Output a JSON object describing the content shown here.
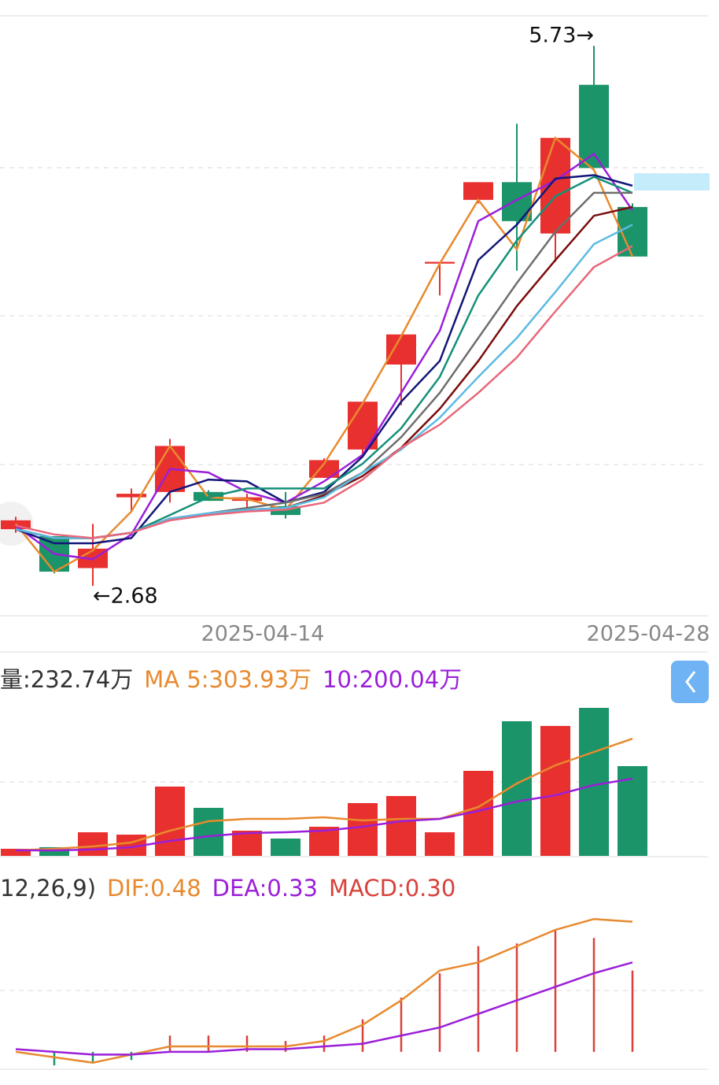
{
  "chart_data": [
    {
      "type": "candlestick",
      "categories": [
        null,
        null,
        null,
        null,
        null,
        null,
        "2025-04-14",
        null,
        null,
        null,
        null,
        null,
        null,
        null,
        null,
        null,
        "2025-04-28"
      ],
      "open": [
        3.0,
        2.96,
        2.78,
        3.18,
        3.21,
        3.21,
        3.16,
        3.13,
        3.29,
        3.45,
        3.93,
        4.5,
        4.86,
        4.96,
        4.67,
        5.51,
        4.82
      ],
      "high": [
        3.07,
        2.96,
        3.03,
        3.23,
        3.51,
        3.22,
        3.2,
        3.21,
        3.4,
        3.72,
        4.1,
        4.51,
        4.96,
        5.29,
        5.21,
        5.73,
        4.84
      ],
      "low": [
        2.98,
        2.75,
        2.68,
        3.1,
        3.15,
        3.16,
        3.12,
        3.06,
        3.29,
        3.42,
        3.7,
        4.32,
        4.84,
        4.46,
        4.51,
        5.04,
        4.54
      ],
      "close": [
        3.05,
        2.76,
        2.89,
        3.2,
        3.47,
        3.16,
        3.18,
        3.08,
        3.39,
        3.72,
        4.1,
        4.51,
        4.96,
        4.74,
        5.21,
        5.04,
        4.54
      ],
      "up_color": "#e8312f",
      "down_color": "#1a9468",
      "lines": [
        {
          "color": "#e88a2e",
          "values": [
            3.03,
            2.76,
            2.88,
            3.1,
            3.47,
            3.18,
            3.17,
            3.11,
            3.37,
            3.71,
            4.09,
            4.5,
            4.86,
            4.58,
            5.21,
            5.03,
            4.54
          ]
        },
        {
          "color": "#9b1fd9",
          "values": [
            3.02,
            2.86,
            2.83,
            2.97,
            3.34,
            3.32,
            3.21,
            3.15,
            3.27,
            3.42,
            3.77,
            4.12,
            4.74,
            4.86,
            4.97,
            5.12,
            4.8
          ]
        },
        {
          "color": "#14167a",
          "values": [
            3.0,
            2.92,
            2.92,
            2.95,
            3.21,
            3.28,
            3.27,
            3.15,
            3.21,
            3.41,
            3.72,
            3.95,
            4.52,
            4.72,
            4.98,
            5.0,
            4.94
          ]
        },
        {
          "color": "#15907a",
          "values": [
            3.0,
            2.95,
            2.95,
            2.98,
            3.08,
            3.18,
            3.23,
            3.23,
            3.23,
            3.37,
            3.57,
            3.86,
            4.32,
            4.63,
            4.88,
            4.99,
            4.9
          ]
        },
        {
          "color": "#6e6e6e",
          "values": [
            3.0,
            2.95,
            2.95,
            2.98,
            3.06,
            3.09,
            3.12,
            3.15,
            3.2,
            3.32,
            3.52,
            3.77,
            4.08,
            4.39,
            4.68,
            4.9,
            4.9
          ]
        },
        {
          "color": "#7a0d0d",
          "values": [
            3.0,
            2.95,
            2.95,
            2.98,
            3.06,
            3.08,
            3.11,
            3.12,
            3.19,
            3.3,
            3.46,
            3.68,
            3.95,
            4.26,
            4.52,
            4.77,
            4.82
          ]
        },
        {
          "color": "#5bbbe3",
          "values": [
            3.0,
            2.95,
            2.95,
            2.98,
            3.06,
            3.09,
            3.11,
            3.12,
            3.18,
            3.32,
            3.45,
            3.63,
            3.86,
            4.08,
            4.34,
            4.61,
            4.72
          ]
        },
        {
          "color": "#e8677a",
          "values": [
            3.02,
            2.97,
            2.95,
            2.98,
            3.05,
            3.08,
            3.1,
            3.11,
            3.15,
            3.28,
            3.46,
            3.59,
            3.77,
            3.97,
            4.23,
            4.48,
            4.6
          ]
        }
      ],
      "annotations": [
        {
          "text": "5.73→"
        },
        {
          "text": "←2.68"
        }
      ],
      "ylim": [
        2.52,
        5.9
      ]
    },
    {
      "type": "bar",
      "header": [
        {
          "text": "量:232.74万",
          "color": "#333333"
        },
        {
          "text": "MA 5:303.93万",
          "color": "#e88a2e"
        },
        {
          "text": "10:200.04万",
          "color": "#9b1fd9"
        }
      ],
      "values": [
        18.4,
        22.5,
        61.2,
        55.1,
        179.7,
        124.5,
        65.3,
        44.9,
        75.5,
        136.8,
        155.2,
        61.2,
        220.5,
        349.1,
        336.9,
        383.8,
        232.74
      ],
      "series": [
        {
          "color": "#e88a2e",
          "values": [
            14.3,
            18.4,
            24.5,
            34.7,
            65.3,
            89.8,
            95.9,
            95.9,
            100.0,
            91.9,
            95.9,
            95.9,
            126.6,
            187.8,
            234.8,
            269.5,
            303.93
          ]
        },
        {
          "color": "#9b1fd9",
          "values": [
            14.3,
            14.3,
            16.3,
            22.5,
            38.8,
            51.0,
            59.2,
            61.2,
            65.3,
            75.5,
            89.8,
            96.0,
            116.4,
            140.9,
            157.2,
            183.7,
            200.04
          ]
        }
      ],
      "ylim": [
        0,
        392
      ]
    },
    {
      "type": "macd",
      "header": [
        {
          "text": "12,26,9)",
          "color": "#333333"
        },
        {
          "text": "DIF:0.48",
          "color": "#e88a2e"
        },
        {
          "text": "DEA:0.33",
          "color": "#9b1fd9"
        },
        {
          "text": "MACD:0.30",
          "color": "#d9413b"
        }
      ],
      "values": [
        0.0,
        -0.05,
        -0.04,
        -0.03,
        0.06,
        0.06,
        0.06,
        0.04,
        0.06,
        0.12,
        0.2,
        0.29,
        0.39,
        0.4,
        0.45,
        0.42,
        0.3
      ],
      "up_color": "#d9413b",
      "down_color": "#1a9468",
      "series": [
        {
          "color": "#e88a2e",
          "values": [
            0.0,
            -0.02,
            -0.04,
            -0.01,
            0.02,
            0.02,
            0.02,
            0.02,
            0.04,
            0.1,
            0.19,
            0.3,
            0.33,
            0.39,
            0.45,
            0.49,
            0.48
          ]
        },
        {
          "color": "#9b1fd9",
          "values": [
            0.01,
            0.0,
            -0.01,
            -0.01,
            0.0,
            0.0,
            0.01,
            0.01,
            0.02,
            0.03,
            0.06,
            0.09,
            0.14,
            0.19,
            0.24,
            0.29,
            0.33
          ]
        }
      ],
      "ylim": [
        -0.07,
        0.54
      ]
    }
  ]
}
